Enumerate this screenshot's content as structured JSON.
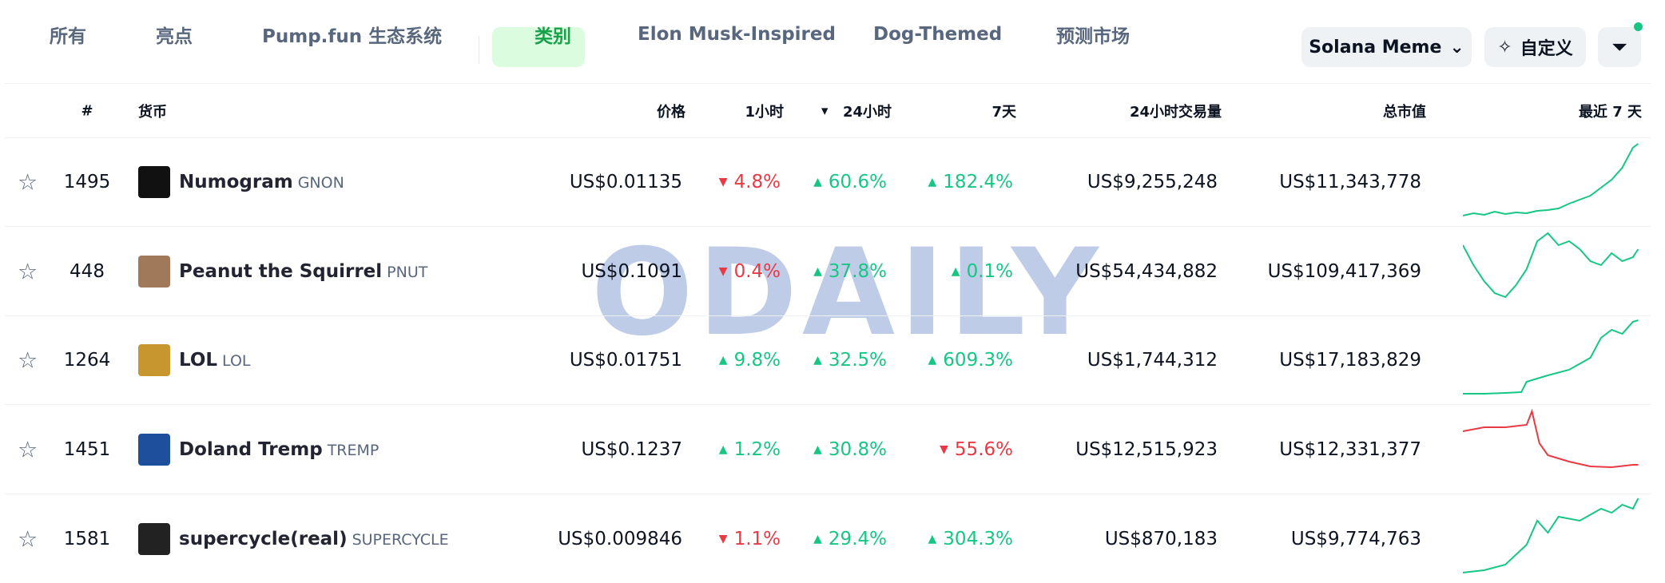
{
  "tabs": [
    "所有",
    "亮点",
    "Pump.fun 生态系统",
    "类别",
    "Elon Musk-Inspired",
    "Dog-Themed",
    "预测市场"
  ],
  "active_tab": 3,
  "controls": {
    "category": "Solana Meme",
    "customize": "自定义"
  },
  "watermark": "ODAILY",
  "table": {
    "headers": [
      "#",
      "货币",
      "价格",
      "1小时",
      "24小时",
      "7天",
      "24小时交易量",
      "总市值",
      "最近 7 天"
    ],
    "rows": [
      {
        "rank": "1495",
        "name": "Numogram",
        "symbol": "GNON",
        "price": "US$0.01135",
        "h1": "4.8%",
        "h1_dir": "down",
        "h24": "60.6%",
        "h24_dir": "up",
        "d7": "182.4%",
        "d7_dir": "up",
        "volume": "US$9,255,248",
        "mcap": "US$11,343,778",
        "icon": "#111111"
      },
      {
        "rank": "448",
        "name": "Peanut the Squirrel",
        "symbol": "PNUT",
        "price": "US$0.1091",
        "h1": "0.4%",
        "h1_dir": "down",
        "h24": "37.8%",
        "h24_dir": "up",
        "d7": "0.1%",
        "d7_dir": "up",
        "volume": "US$54,434,882",
        "mcap": "US$109,417,369",
        "icon": "#a0785a"
      },
      {
        "rank": "1264",
        "name": "LOL",
        "symbol": "LOL",
        "price": "US$0.01751",
        "h1": "9.8%",
        "h1_dir": "up",
        "h24": "32.5%",
        "h24_dir": "up",
        "d7": "609.3%",
        "d7_dir": "up",
        "volume": "US$1,744,312",
        "mcap": "US$17,183,829",
        "icon": "#c8962e"
      },
      {
        "rank": "1451",
        "name": "Doland Tremp",
        "symbol": "TREMP",
        "price": "US$0.1237",
        "h1": "1.2%",
        "h1_dir": "up",
        "h24": "30.8%",
        "h24_dir": "up",
        "d7": "55.6%",
        "d7_dir": "down",
        "volume": "US$12,515,923",
        "mcap": "US$12,331,377",
        "icon": "#1d4f9c"
      },
      {
        "rank": "1581",
        "name": "supercycle(real)",
        "symbol": "SUPERCYCLE",
        "price": "US$0.009846",
        "h1": "1.1%",
        "h1_dir": "down",
        "h24": "29.4%",
        "h24_dir": "up",
        "d7": "304.3%",
        "d7_dir": "up",
        "volume": "US$870,183",
        "mcap": "US$9,774,763",
        "icon": "#222222"
      }
    ]
  }
}
